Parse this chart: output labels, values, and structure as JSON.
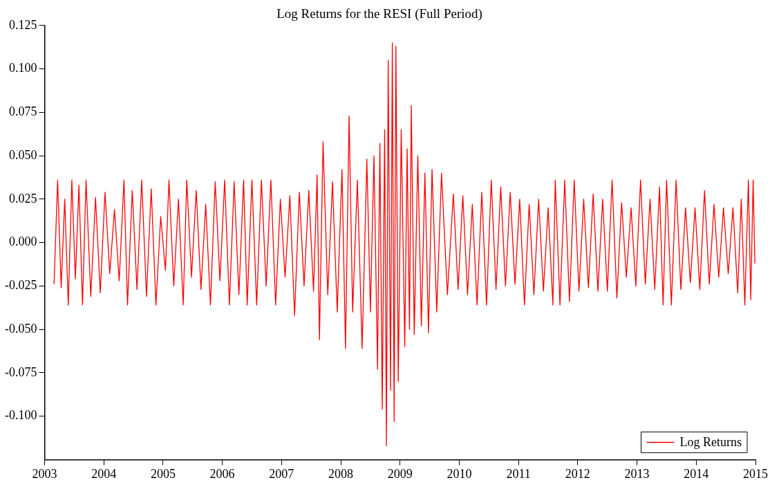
{
  "chart_data": {
    "type": "line",
    "title": "Log Returns for the RESI (Full Period)",
    "xlim": [
      2003,
      2015
    ],
    "xticks": [
      2003,
      2004,
      2005,
      2006,
      2007,
      2008,
      2009,
      2010,
      2011,
      2012,
      2013,
      2014,
      2015
    ],
    "ylim": [
      -0.125,
      0.125
    ],
    "yticks": [
      {
        "value": -0.1,
        "label": "-0.100"
      },
      {
        "value": -0.075,
        "label": "-0.075"
      },
      {
        "value": -0.05,
        "label": "-0.050"
      },
      {
        "value": -0.025,
        "label": "-0.025"
      },
      {
        "value": 0,
        "label": "0.000"
      },
      {
        "value": 0.025,
        "label": "0.025"
      },
      {
        "value": 0.05,
        "label": "0.050"
      },
      {
        "value": 0.075,
        "label": "0.075"
      },
      {
        "value": 0.1,
        "label": "0.100"
      },
      {
        "value": 0.125,
        "label": "0.125"
      }
    ],
    "grid": false,
    "legend": "bottom right",
    "marker": "none",
    "line_style": "solid",
    "series": [
      {
        "name": "Log Returns",
        "color": "#ff0000",
        "x": [
          2003.16,
          2003.22,
          2003.28,
          2003.34,
          2003.4,
          2003.46,
          2003.52,
          2003.58,
          2003.64,
          2003.7,
          2003.78,
          2003.86,
          2003.94,
          2004.02,
          2004.1,
          2004.18,
          2004.26,
          2004.34,
          2004.4,
          2004.48,
          2004.56,
          2004.64,
          2004.72,
          2004.8,
          2004.88,
          2004.96,
          2005.04,
          2005.1,
          2005.18,
          2005.26,
          2005.34,
          2005.4,
          2005.48,
          2005.56,
          2005.64,
          2005.72,
          2005.8,
          2005.88,
          2005.96,
          2006.04,
          2006.12,
          2006.2,
          2006.28,
          2006.36,
          2006.42,
          2006.5,
          2006.58,
          2006.66,
          2006.74,
          2006.82,
          2006.9,
          2006.98,
          2007.06,
          2007.14,
          2007.22,
          2007.3,
          2007.38,
          2007.46,
          2007.54,
          2007.6,
          2007.64,
          2007.7,
          2007.78,
          2007.86,
          2007.94,
          2008.02,
          2008.08,
          2008.14,
          2008.2,
          2008.28,
          2008.36,
          2008.44,
          2008.5,
          2008.56,
          2008.62,
          2008.66,
          2008.7,
          2008.74,
          2008.77,
          2008.8,
          2008.84,
          2008.87,
          2008.9,
          2008.93,
          2008.97,
          2009.02,
          2009.08,
          2009.12,
          2009.16,
          2009.19,
          2009.24,
          2009.3,
          2009.36,
          2009.42,
          2009.48,
          2009.54,
          2009.62,
          2009.7,
          2009.8,
          2009.9,
          2009.98,
          2010.06,
          2010.14,
          2010.22,
          2010.3,
          2010.38,
          2010.46,
          2010.54,
          2010.62,
          2010.7,
          2010.78,
          2010.86,
          2010.94,
          2011.02,
          2011.1,
          2011.18,
          2011.26,
          2011.34,
          2011.42,
          2011.5,
          2011.58,
          2011.62,
          2011.7,
          2011.78,
          2011.86,
          2011.94,
          2012.02,
          2012.1,
          2012.18,
          2012.26,
          2012.34,
          2012.42,
          2012.5,
          2012.58,
          2012.66,
          2012.74,
          2012.82,
          2012.9,
          2012.98,
          2013.06,
          2013.14,
          2013.22,
          2013.3,
          2013.38,
          2013.44,
          2013.5,
          2013.58,
          2013.66,
          2013.74,
          2013.82,
          2013.9,
          2013.98,
          2014.06,
          2014.14,
          2014.22,
          2014.3,
          2014.38,
          2014.46,
          2014.54,
          2014.62,
          2014.7,
          2014.76,
          2014.82,
          2014.88,
          2014.92,
          2014.96,
          2014.99
        ],
        "values": [
          -0.024,
          0.036,
          -0.026,
          0.025,
          -0.036,
          0.036,
          -0.021,
          0.033,
          -0.036,
          0.036,
          -0.031,
          0.026,
          -0.029,
          0.029,
          -0.018,
          0.019,
          -0.022,
          0.036,
          -0.036,
          0.03,
          -0.027,
          0.036,
          -0.031,
          0.031,
          -0.036,
          0.015,
          -0.016,
          0.036,
          -0.025,
          0.025,
          -0.036,
          0.036,
          -0.02,
          0.03,
          -0.027,
          0.022,
          -0.036,
          0.035,
          -0.022,
          0.036,
          -0.036,
          0.035,
          -0.03,
          0.036,
          -0.036,
          0.036,
          -0.036,
          0.036,
          -0.025,
          0.036,
          -0.036,
          0.025,
          -0.02,
          0.027,
          -0.042,
          0.029,
          -0.025,
          0.03,
          -0.028,
          0.039,
          -0.056,
          0.058,
          -0.03,
          0.035,
          -0.04,
          0.042,
          -0.061,
          0.073,
          -0.04,
          0.036,
          -0.061,
          0.048,
          -0.04,
          0.05,
          -0.073,
          0.057,
          -0.096,
          0.065,
          -0.117,
          0.105,
          -0.085,
          0.115,
          -0.103,
          0.113,
          -0.08,
          0.065,
          -0.06,
          0.054,
          -0.05,
          0.079,
          -0.053,
          0.05,
          -0.048,
          0.04,
          -0.052,
          0.042,
          -0.04,
          0.04,
          -0.03,
          0.028,
          -0.027,
          0.027,
          -0.03,
          0.022,
          -0.036,
          0.029,
          -0.036,
          0.036,
          -0.027,
          0.032,
          -0.025,
          0.029,
          -0.024,
          0.025,
          -0.036,
          0.022,
          -0.03,
          0.025,
          -0.028,
          0.02,
          -0.036,
          0.036,
          -0.036,
          0.036,
          -0.034,
          0.036,
          -0.028,
          0.025,
          -0.026,
          0.028,
          -0.028,
          0.025,
          -0.028,
          0.036,
          -0.032,
          0.023,
          -0.02,
          0.02,
          -0.025,
          0.036,
          -0.024,
          0.025,
          -0.027,
          0.032,
          -0.036,
          0.036,
          -0.036,
          0.036,
          -0.027,
          0.02,
          -0.023,
          0.02,
          -0.027,
          0.03,
          -0.024,
          0.022,
          -0.02,
          0.02,
          -0.018,
          0.02,
          -0.029,
          0.025,
          -0.036,
          0.036,
          -0.033,
          0.036,
          -0.012
        ]
      }
    ]
  }
}
